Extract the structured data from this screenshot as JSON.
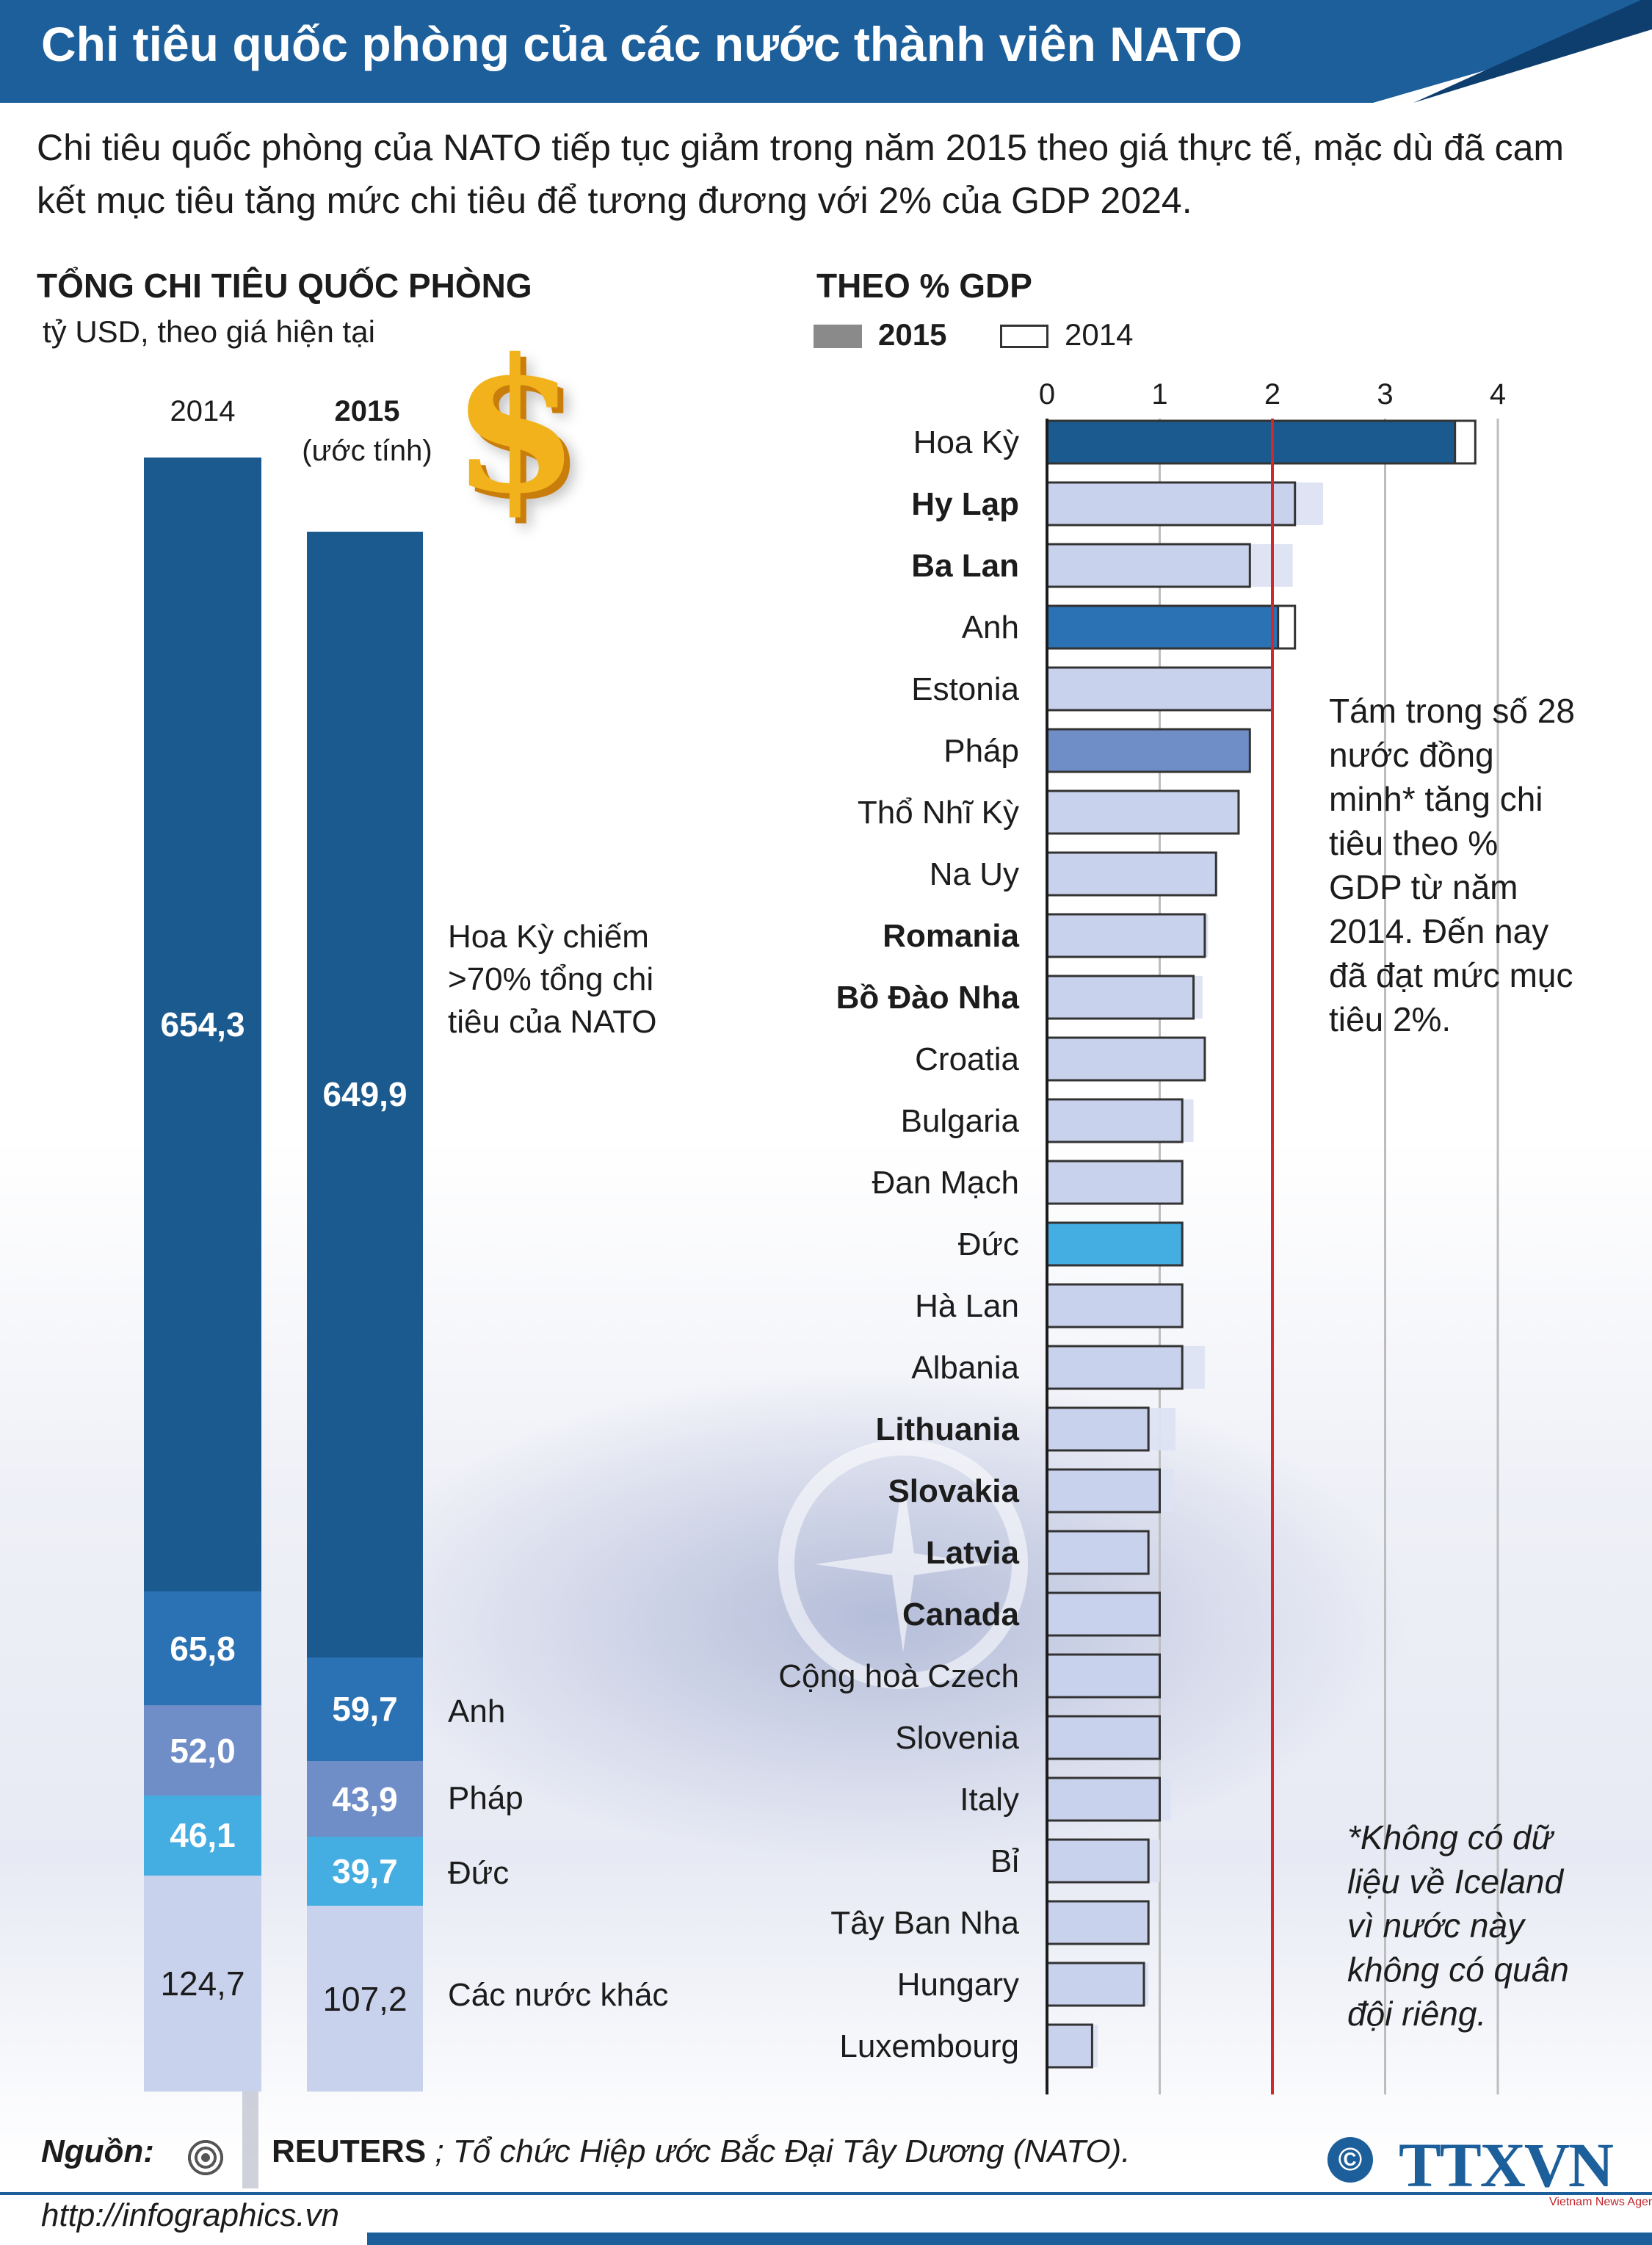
{
  "header": {
    "title": "Chi tiêu quốc phòng của các nước thành viên NATO"
  },
  "subtitle": "Chi tiêu quốc phòng của NATO tiếp tục giảm trong năm 2015 theo giá thực tế, mặc dù đã cam kết mục tiêu tăng mức chi tiêu để tương đương với 2% của GDP 2024.",
  "left_panel": {
    "title": "TỔNG CHI TIÊU QUỐC PHÒNG",
    "unit": "tỷ USD, theo giá hiện tại",
    "col_2014_label": "2014",
    "col_2015_label": "2015",
    "col_2015_note": "(ước tính)",
    "dollar_icon": "dollar-sign-icon",
    "labels": {
      "us": "Hoa Kỳ chiếm >70% tổng chi tiêu của NATO",
      "uk": "Anh",
      "fr": "Pháp",
      "de": "Đức",
      "other": "Các nước khác"
    }
  },
  "right_panel": {
    "title": "THEO % GDP",
    "legend_2015": "2015",
    "legend_2014": "2014",
    "note": "Tám trong số 28 nước đồng minh* tăng chi tiêu theo % GDP từ năm 2014. Đến nay đã đạt mức mục tiêu 2%.",
    "footnote": "*Không có dữ liệu về Iceland vì nước này không có quân đội riêng."
  },
  "source": {
    "label": "Nguồn:",
    "org": "REUTERS",
    "rest": " ; Tổ chức Hiệp ước Bắc Đại Tây Dương (NATO).",
    "icon": "reuters-logo-icon"
  },
  "footer": {
    "url": "http://infographics.vn",
    "copyright": "©",
    "logo": "TTXVN",
    "logo_sub": "Vietnam News Agency"
  },
  "colors": {
    "us": "#1b5a8f",
    "uk": "#2a72b3",
    "fr": "#6f8ec8",
    "de": "#44ade2",
    "other": "#c9d2ec",
    "light_bar": "#c9d2ec",
    "target_line": "#d0282b"
  },
  "chart_data": [
    {
      "type": "bar",
      "stacked": true,
      "unit": "tỷ USD",
      "categories": [
        "2014",
        "2015"
      ],
      "series": [
        {
          "name": "Hoa Kỳ",
          "values": [
            654.3,
            649.9
          ],
          "labels": [
            "654,3",
            "649,9"
          ]
        },
        {
          "name": "Anh",
          "values": [
            65.8,
            59.7
          ],
          "labels": [
            "65,8",
            "59,7"
          ]
        },
        {
          "name": "Pháp",
          "values": [
            52.0,
            43.9
          ],
          "labels": [
            "52,0",
            "43,9"
          ]
        },
        {
          "name": "Đức",
          "values": [
            46.1,
            39.7
          ],
          "labels": [
            "46,1",
            "39,7"
          ]
        },
        {
          "name": "Các nước khác",
          "values": [
            124.7,
            107.2
          ],
          "labels": [
            "124,7",
            "107,2"
          ]
        }
      ]
    },
    {
      "type": "bar",
      "orientation": "horizontal",
      "title": "THEO % GDP",
      "xlim": [
        0,
        4
      ],
      "xticks": [
        0,
        1,
        2,
        3,
        4
      ],
      "target_line": 2,
      "series_names": [
        "2015",
        "2014"
      ],
      "rows": [
        {
          "country": "Hoa Kỳ",
          "bold": false,
          "v2015": 3.62,
          "v2014": 3.8,
          "color": "us"
        },
        {
          "country": "Hy Lạp",
          "bold": true,
          "v2015": 2.2,
          "v2014": 2.45,
          "color": "light"
        },
        {
          "country": "Ba Lan",
          "bold": true,
          "v2015": 1.8,
          "v2014": 2.18,
          "color": "light"
        },
        {
          "country": "Anh",
          "bold": false,
          "v2015": 2.05,
          "v2014": 2.2,
          "color": "uk"
        },
        {
          "country": "Estonia",
          "bold": false,
          "v2015": 2.0,
          "v2014": 2.0,
          "color": "light"
        },
        {
          "country": "Pháp",
          "bold": false,
          "v2015": 1.8,
          "v2014": 1.8,
          "color": "fr"
        },
        {
          "country": "Thổ Nhĩ Kỳ",
          "bold": false,
          "v2015": 1.7,
          "v2014": 1.7,
          "color": "light"
        },
        {
          "country": "Na Uy",
          "bold": false,
          "v2015": 1.5,
          "v2014": 1.5,
          "color": "light"
        },
        {
          "country": "Romania",
          "bold": true,
          "v2015": 1.4,
          "v2014": 1.43,
          "color": "light"
        },
        {
          "country": "Bồ Đào Nha",
          "bold": true,
          "v2015": 1.3,
          "v2014": 1.38,
          "color": "light"
        },
        {
          "country": "Croatia",
          "bold": false,
          "v2015": 1.4,
          "v2014": 1.4,
          "color": "light"
        },
        {
          "country": "Bulgaria",
          "bold": false,
          "v2015": 1.2,
          "v2014": 1.3,
          "color": "light"
        },
        {
          "country": "Đan Mạch",
          "bold": false,
          "v2015": 1.2,
          "v2014": 1.2,
          "color": "light"
        },
        {
          "country": "Đức",
          "bold": false,
          "v2015": 1.2,
          "v2014": 1.2,
          "color": "de"
        },
        {
          "country": "Hà Lan",
          "bold": false,
          "v2015": 1.2,
          "v2014": 1.2,
          "color": "light"
        },
        {
          "country": "Albania",
          "bold": false,
          "v2015": 1.2,
          "v2014": 1.4,
          "color": "light"
        },
        {
          "country": "Lithuania",
          "bold": true,
          "v2015": 0.9,
          "v2014": 1.14,
          "color": "light"
        },
        {
          "country": "Slovakia",
          "bold": true,
          "v2015": 1.0,
          "v2014": 1.12,
          "color": "light"
        },
        {
          "country": "Latvia",
          "bold": true,
          "v2015": 0.9,
          "v2014": 0.9,
          "color": "light"
        },
        {
          "country": "Canada",
          "bold": true,
          "v2015": 1.0,
          "v2014": 1.0,
          "color": "light"
        },
        {
          "country": "Cộng hoà Czech",
          "bold": false,
          "v2015": 1.0,
          "v2014": 1.0,
          "color": "light"
        },
        {
          "country": "Slovenia",
          "bold": false,
          "v2015": 1.0,
          "v2014": 1.0,
          "color": "light"
        },
        {
          "country": "Italy",
          "bold": false,
          "v2015": 1.0,
          "v2014": 1.1,
          "color": "light"
        },
        {
          "country": "Bỉ",
          "bold": false,
          "v2015": 0.9,
          "v2014": 1.0,
          "color": "light"
        },
        {
          "country": "Tây Ban Nha",
          "bold": false,
          "v2015": 0.9,
          "v2014": 0.9,
          "color": "light"
        },
        {
          "country": "Hungary",
          "bold": false,
          "v2015": 0.86,
          "v2014": 0.9,
          "color": "light"
        },
        {
          "country": "Luxembourg",
          "bold": false,
          "v2015": 0.4,
          "v2014": 0.45,
          "color": "light"
        }
      ]
    }
  ]
}
